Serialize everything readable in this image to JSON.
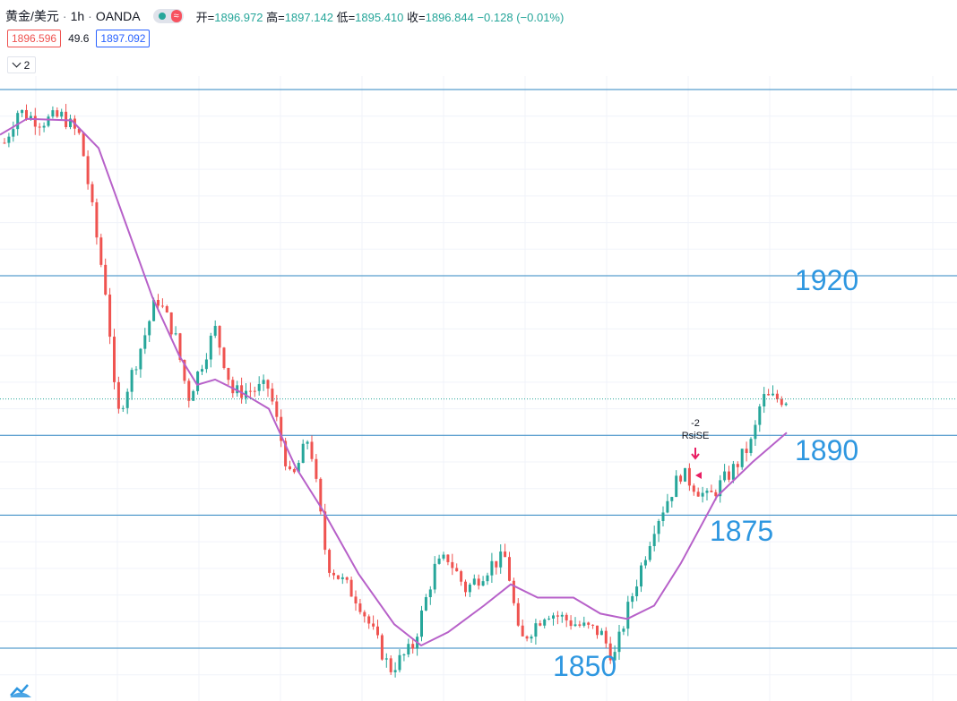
{
  "header": {
    "symbol": "黄金/美元",
    "interval": "1h",
    "source": "OANDA",
    "open_label": "开=",
    "open": "1896.972",
    "high_label": "高=",
    "high": "1897.142",
    "low_label": "低=",
    "low": "1895.410",
    "close_label": "收=",
    "close": "1896.844",
    "change": "−0.128 (−0.01%)"
  },
  "quote": {
    "bid": "1896.596",
    "spread": "49.6",
    "ask": "1897.092"
  },
  "indicator_toggle": {
    "count": "2"
  },
  "levels": [
    {
      "label": "1920"
    },
    {
      "label": "1890"
    },
    {
      "label": "1875"
    },
    {
      "label": "1850"
    }
  ],
  "signal": {
    "value": "-2",
    "name": "RsiSE"
  },
  "colors": {
    "up": "#26a69a",
    "down": "#ef5350",
    "ma": "#b761c9",
    "level": "#2e86c1",
    "label": "#2e97e0",
    "marker": "#e91e63"
  },
  "icons": {
    "logo": "tradingview-logo-icon",
    "collapse": "chevron-down-icon"
  },
  "chart_data": {
    "type": "candlestick",
    "instrument": "XAU/USD",
    "interval": "1h",
    "y_range": [
      1843,
      1955
    ],
    "grid": true,
    "horizontal_levels": [
      1955,
      1920,
      1890,
      1875,
      1850
    ],
    "current_price": 1896.844,
    "ma_points": [
      [
        0,
        1946.5
      ],
      [
        30,
        1949.5
      ],
      [
        80,
        1949.2
      ],
      [
        110,
        1944
      ],
      [
        140,
        1930
      ],
      [
        170,
        1916
      ],
      [
        200,
        1905
      ],
      [
        220,
        1899.5
      ],
      [
        240,
        1900.5
      ],
      [
        270,
        1898
      ],
      [
        300,
        1895
      ],
      [
        330,
        1884
      ],
      [
        360,
        1876
      ],
      [
        400,
        1864
      ],
      [
        440,
        1854.5
      ],
      [
        470,
        1850.5
      ],
      [
        500,
        1853
      ],
      [
        540,
        1858
      ],
      [
        570,
        1862
      ],
      [
        600,
        1859.5
      ],
      [
        640,
        1859.5
      ],
      [
        670,
        1856.5
      ],
      [
        700,
        1855.5
      ],
      [
        730,
        1858
      ],
      [
        760,
        1866
      ],
      [
        800,
        1878.5
      ],
      [
        840,
        1885
      ],
      [
        878,
        1890.5
      ]
    ],
    "anchors": [
      [
        5,
        1945
      ],
      [
        20,
        1951
      ],
      [
        45,
        1949
      ],
      [
        70,
        1950
      ],
      [
        90,
        1946
      ],
      [
        110,
        1925
      ],
      [
        120,
        1915
      ],
      [
        130,
        1893
      ],
      [
        160,
        1908
      ],
      [
        175,
        1916
      ],
      [
        195,
        1909
      ],
      [
        210,
        1897
      ],
      [
        240,
        1910
      ],
      [
        260,
        1898
      ],
      [
        300,
        1899
      ],
      [
        325,
        1881
      ],
      [
        345,
        1890
      ],
      [
        365,
        1866
      ],
      [
        400,
        1859
      ],
      [
        435,
        1846
      ],
      [
        460,
        1850
      ],
      [
        485,
        1865
      ],
      [
        500,
        1867
      ],
      [
        520,
        1861
      ],
      [
        550,
        1866
      ],
      [
        565,
        1867
      ],
      [
        580,
        1851
      ],
      [
        610,
        1857
      ],
      [
        650,
        1854
      ],
      [
        670,
        1853
      ],
      [
        685,
        1848
      ],
      [
        700,
        1857
      ],
      [
        730,
        1873
      ],
      [
        760,
        1883
      ],
      [
        790,
        1878
      ],
      [
        820,
        1884
      ],
      [
        840,
        1889
      ],
      [
        850,
        1897
      ],
      [
        878,
        1896.8
      ]
    ]
  }
}
